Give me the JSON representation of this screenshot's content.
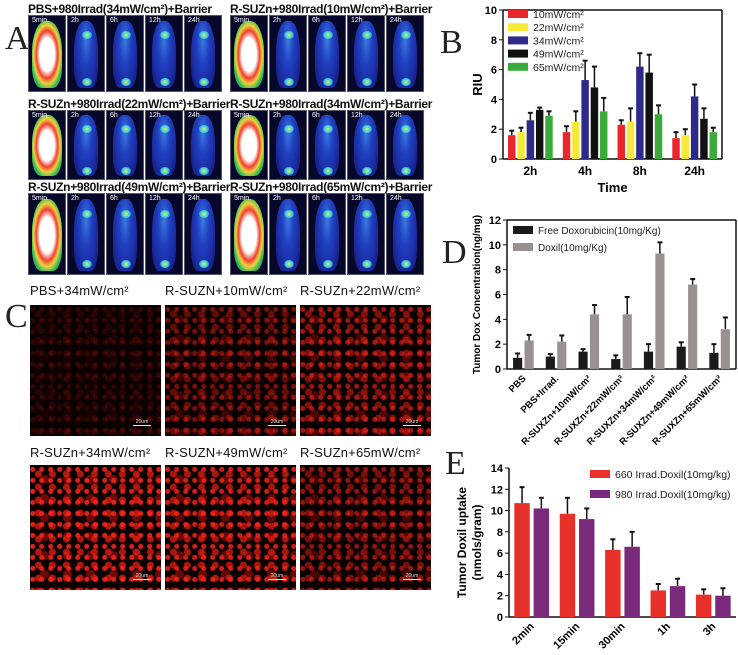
{
  "panel_letters": {
    "a": "A",
    "b": "B",
    "c": "C",
    "d": "D",
    "e": "E"
  },
  "panel_a": {
    "groups": [
      {
        "title": "PBS+980Irrad(34mW/cm²)+Barrier",
        "timepoints": [
          "5min",
          "2h",
          "6h",
          "12h",
          "24h"
        ]
      },
      {
        "title": "R-SUZn+980Irrad(10mW/cm²)+Barrier",
        "timepoints": [
          "5min",
          "2h",
          "6h",
          "12h",
          "24h"
        ]
      },
      {
        "title": "R-SUZn+980Irrad(22mW/cm²)+Barrier",
        "timepoints": [
          "5min",
          "2h",
          "6h",
          "12h",
          "24h"
        ]
      },
      {
        "title": "R-SUZn+980Irrad(34mW/cm²)+Barrier",
        "timepoints": [
          "5min",
          "2h",
          "6h",
          "12h",
          "24h"
        ]
      },
      {
        "title": "R-SUZn+980Irrad(49mW/cm²)+Barrier",
        "timepoints": [
          "5min",
          "2h",
          "6h",
          "12h",
          "24h"
        ]
      },
      {
        "title": "R-SUZn+980Irrad(65mW/cm²)+Barrier",
        "timepoints": [
          "5min",
          "2h",
          "6h",
          "12h",
          "24h"
        ]
      }
    ]
  },
  "panel_c": {
    "images": [
      {
        "title": "PBS+34mW/cm²",
        "intensity": 0.15
      },
      {
        "title": "R-SUZN+10mW/cm²",
        "intensity": 0.45
      },
      {
        "title": "R-SUZn+22mW/cm²",
        "intensity": 0.6
      },
      {
        "title": "R-SUZn+34mW/cm²",
        "intensity": 0.85
      },
      {
        "title": "R-SUZN+49mW/cm²",
        "intensity": 0.8
      },
      {
        "title": "R-SUZn+65mW/cm²",
        "intensity": 0.55
      }
    ],
    "scale_bar": "20um"
  },
  "chart_data": [
    {
      "panel": "B",
      "type": "bar",
      "xlabel": "Time",
      "ylabel": "RIU",
      "ylim": [
        0,
        10
      ],
      "yticks": [
        0,
        2,
        4,
        6,
        8,
        10
      ],
      "legend": "top-left",
      "categories": [
        "2h",
        "4h",
        "8h",
        "24h"
      ],
      "series": [
        {
          "name": "10mW/cm²",
          "color": "#e8262b",
          "values": [
            1.6,
            1.8,
            2.3,
            1.4
          ],
          "errors": [
            0.3,
            0.4,
            0.3,
            0.4
          ]
        },
        {
          "name": "22mW/cm²",
          "color": "#f5ea3a",
          "values": [
            1.8,
            2.5,
            2.5,
            1.6
          ],
          "errors": [
            0.3,
            0.7,
            0.9,
            0.4
          ]
        },
        {
          "name": "34mW/cm²",
          "color": "#2e2a8a",
          "values": [
            2.6,
            5.3,
            6.2,
            4.2
          ],
          "errors": [
            0.5,
            1.3,
            0.9,
            0.8
          ]
        },
        {
          "name": "49mW/cm²",
          "color": "#111111",
          "values": [
            3.3,
            4.8,
            5.8,
            2.7
          ],
          "errors": [
            0.15,
            1.4,
            1.2,
            0.7
          ]
        },
        {
          "name": "65mW/cm²",
          "color": "#3aaa3a",
          "values": [
            2.9,
            3.2,
            3.0,
            1.8
          ],
          "errors": [
            0.3,
            0.9,
            0.6,
            0.3
          ]
        }
      ]
    },
    {
      "panel": "D",
      "type": "bar",
      "xlabel": "",
      "ylabel": "Tumor Dox Concentration(ng/mg)",
      "ylim": [
        0,
        12
      ],
      "yticks": [
        0,
        2,
        4,
        6,
        8,
        10,
        12
      ],
      "legend": "top-left",
      "categories": [
        "PBS",
        "PBS+Irrad.",
        "R-SUXZn+10mW/cm²",
        "R-SUXZn+22mW/cm²",
        "R-SUXZn+34mW/cm²",
        "R-SUXZn+49mW/cm²",
        "R-SUXZn+65mW/cm²"
      ],
      "series": [
        {
          "name": "Free Doxorubicin(10mg/Kg)",
          "color": "#1a1a1a",
          "values": [
            0.9,
            1.0,
            1.4,
            0.8,
            1.4,
            1.8,
            1.3
          ],
          "errors": [
            0.35,
            0.2,
            0.2,
            0.3,
            0.6,
            0.35,
            0.7
          ]
        },
        {
          "name": "Doxil(10mg/Kg)",
          "color": "#9a9090",
          "values": [
            2.3,
            2.2,
            4.4,
            4.4,
            9.3,
            6.8,
            3.2
          ],
          "errors": [
            0.45,
            0.5,
            0.75,
            1.4,
            0.9,
            0.45,
            0.95
          ]
        }
      ]
    },
    {
      "panel": "E",
      "type": "bar",
      "xlabel": "",
      "ylabel": "Tumor Doxil uptake",
      "ylabel2": "(nmols/gram)",
      "ylim": [
        0,
        14
      ],
      "yticks": [
        0,
        2,
        4,
        6,
        8,
        10,
        12,
        14
      ],
      "legend": "top-right",
      "categories": [
        "2min",
        "15min",
        "30min",
        "1h",
        "3h"
      ],
      "series": [
        {
          "name": "660 Irrad.Doxil(10mg/kg)",
          "color": "#e8302a",
          "values": [
            10.7,
            9.7,
            6.3,
            2.5,
            2.1
          ],
          "errors": [
            1.5,
            1.5,
            1.0,
            0.6,
            0.5
          ]
        },
        {
          "name": "980 Irrad.Doxil(10mg/kg)",
          "color": "#7a2a7a",
          "values": [
            10.2,
            9.2,
            6.6,
            2.9,
            2.0
          ],
          "errors": [
            1.0,
            1.0,
            1.4,
            0.7,
            0.7
          ]
        }
      ]
    }
  ]
}
